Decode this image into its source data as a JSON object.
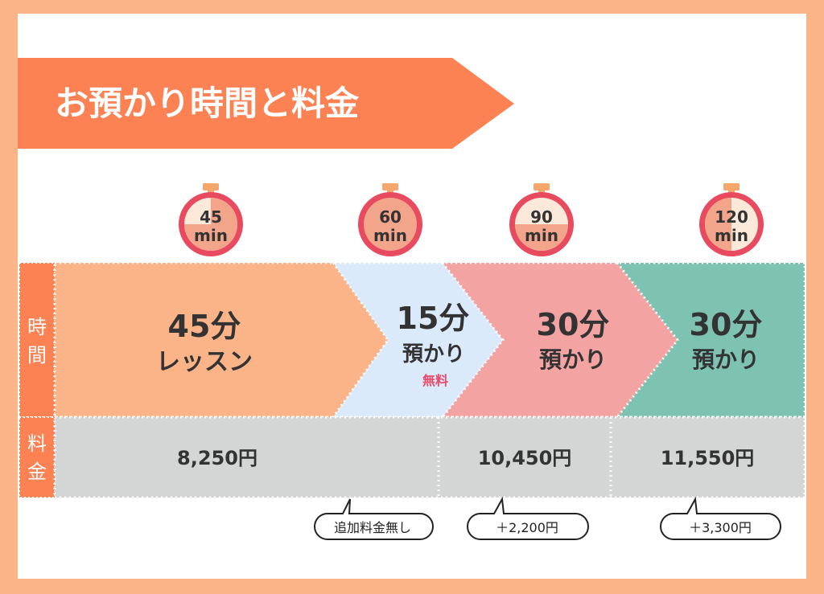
{
  "header": {
    "title": "お預かり時間と料金"
  },
  "row_labels": {
    "time": [
      "時",
      "間"
    ],
    "price": [
      "料",
      "金"
    ]
  },
  "timers": [
    {
      "number": "45",
      "unit": "min"
    },
    {
      "number": "60",
      "unit": "min"
    },
    {
      "number": "90",
      "unit": "min"
    },
    {
      "number": "120",
      "unit": "min"
    }
  ],
  "segments": [
    {
      "duration": "45分",
      "label": "レッスン",
      "note": "",
      "color": "#fbb488"
    },
    {
      "duration": "15分",
      "label": "預かり",
      "note": "無料",
      "color": "#dbeafb"
    },
    {
      "duration": "30分",
      "label": "預かり",
      "note": "",
      "color": "#f4a3a3"
    },
    {
      "duration": "30分",
      "label": "預かり",
      "note": "",
      "color": "#7ec2b1"
    }
  ],
  "prices": [
    {
      "amount": "8,250円"
    },
    {
      "amount": "10,450円"
    },
    {
      "amount": "11,550円"
    }
  ],
  "callouts": [
    {
      "text": "追加料金無し"
    },
    {
      "text": "＋2,200円"
    },
    {
      "text": "＋3,300円"
    }
  ],
  "colors": {
    "accent": "#fc8153",
    "note_red": "#e84a6a",
    "timer_ring": "#e84a5f",
    "timer_face": "#fde9d9",
    "timer_fill": "#f3a58c",
    "timer_button": "#f4a66b",
    "price_bg": "#d3d6d4",
    "text_dark": "#333333"
  }
}
